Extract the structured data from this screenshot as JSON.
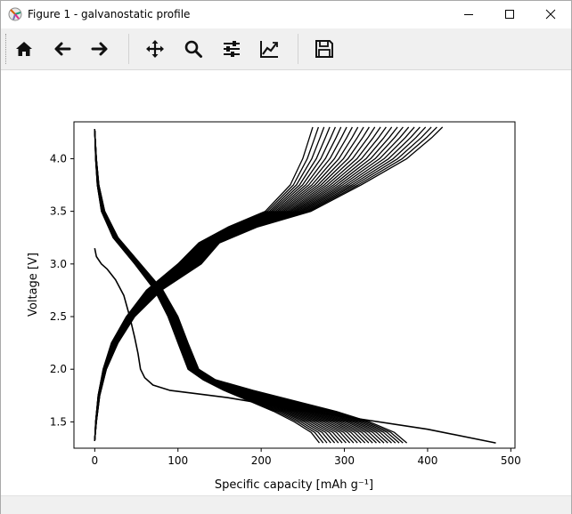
{
  "window": {
    "title": "Figure 1 - galvanostatic profile",
    "controls": [
      "minimize-icon",
      "maximize-icon",
      "close-icon"
    ]
  },
  "toolbar": {
    "buttons": [
      {
        "name": "home",
        "icon": "home-icon"
      },
      {
        "name": "back",
        "icon": "arrow-left-icon"
      },
      {
        "name": "forward",
        "icon": "arrow-right-icon"
      },
      {
        "name": "pan",
        "icon": "move-icon"
      },
      {
        "name": "zoom",
        "icon": "magnifier-icon"
      },
      {
        "name": "configure-subplots",
        "icon": "sliders-icon"
      },
      {
        "name": "edit-axis",
        "icon": "line-chart-icon"
      },
      {
        "name": "save",
        "icon": "floppy-disk-icon"
      }
    ]
  },
  "chart_data": {
    "type": "line",
    "title": "",
    "xlabel": "Specific capacity [mAh g⁻¹]",
    "ylabel": "Voltage [V]",
    "xlim": [
      -25,
      505
    ],
    "ylim": [
      1.25,
      4.35
    ],
    "xticks": [
      "0",
      "100",
      "200",
      "300",
      "400",
      "500"
    ],
    "yticks": [
      "1.5",
      "2.0",
      "2.5",
      "3.0",
      "3.5",
      "4.0"
    ],
    "grid": false,
    "line_color": "#000000",
    "first_discharge": {
      "x": [
        0,
        2,
        8,
        15,
        25,
        35,
        42,
        48,
        52,
        55,
        60,
        70,
        90,
        120,
        160,
        220,
        300,
        400,
        482
      ],
      "y": [
        3.15,
        3.07,
        3.0,
        2.95,
        2.85,
        2.7,
        2.5,
        2.3,
        2.15,
        2.0,
        1.92,
        1.85,
        1.8,
        1.77,
        1.73,
        1.65,
        1.55,
        1.43,
        1.3
      ]
    },
    "charge_curves": {
      "count": 24,
      "y": [
        1.32,
        1.5,
        1.75,
        2.0,
        2.25,
        2.5,
        2.75,
        3.0,
        3.2,
        3.35,
        3.5,
        3.75,
        4.0,
        4.2,
        4.3
      ],
      "x_first": [
        0,
        1,
        4,
        10,
        20,
        38,
        62,
        100,
        125,
        160,
        205,
        235,
        250,
        258,
        262
      ],
      "x_last": [
        0,
        2,
        6,
        14,
        28,
        48,
        80,
        128,
        150,
        195,
        260,
        320,
        375,
        405,
        418
      ]
    },
    "discharge_curves": {
      "count": 24,
      "y": [
        4.28,
        4.0,
        3.75,
        3.5,
        3.25,
        3.0,
        2.75,
        2.5,
        2.25,
        2.0,
        1.9,
        1.8,
        1.7,
        1.6,
        1.5,
        1.4,
        1.3
      ],
      "x_first": [
        0,
        1,
        3,
        8,
        22,
        48,
        72,
        88,
        100,
        112,
        130,
        155,
        185,
        215,
        240,
        260,
        270
      ],
      "x_last": [
        0,
        2,
        5,
        12,
        28,
        55,
        82,
        100,
        112,
        125,
        145,
        190,
        240,
        290,
        330,
        360,
        375
      ]
    }
  }
}
